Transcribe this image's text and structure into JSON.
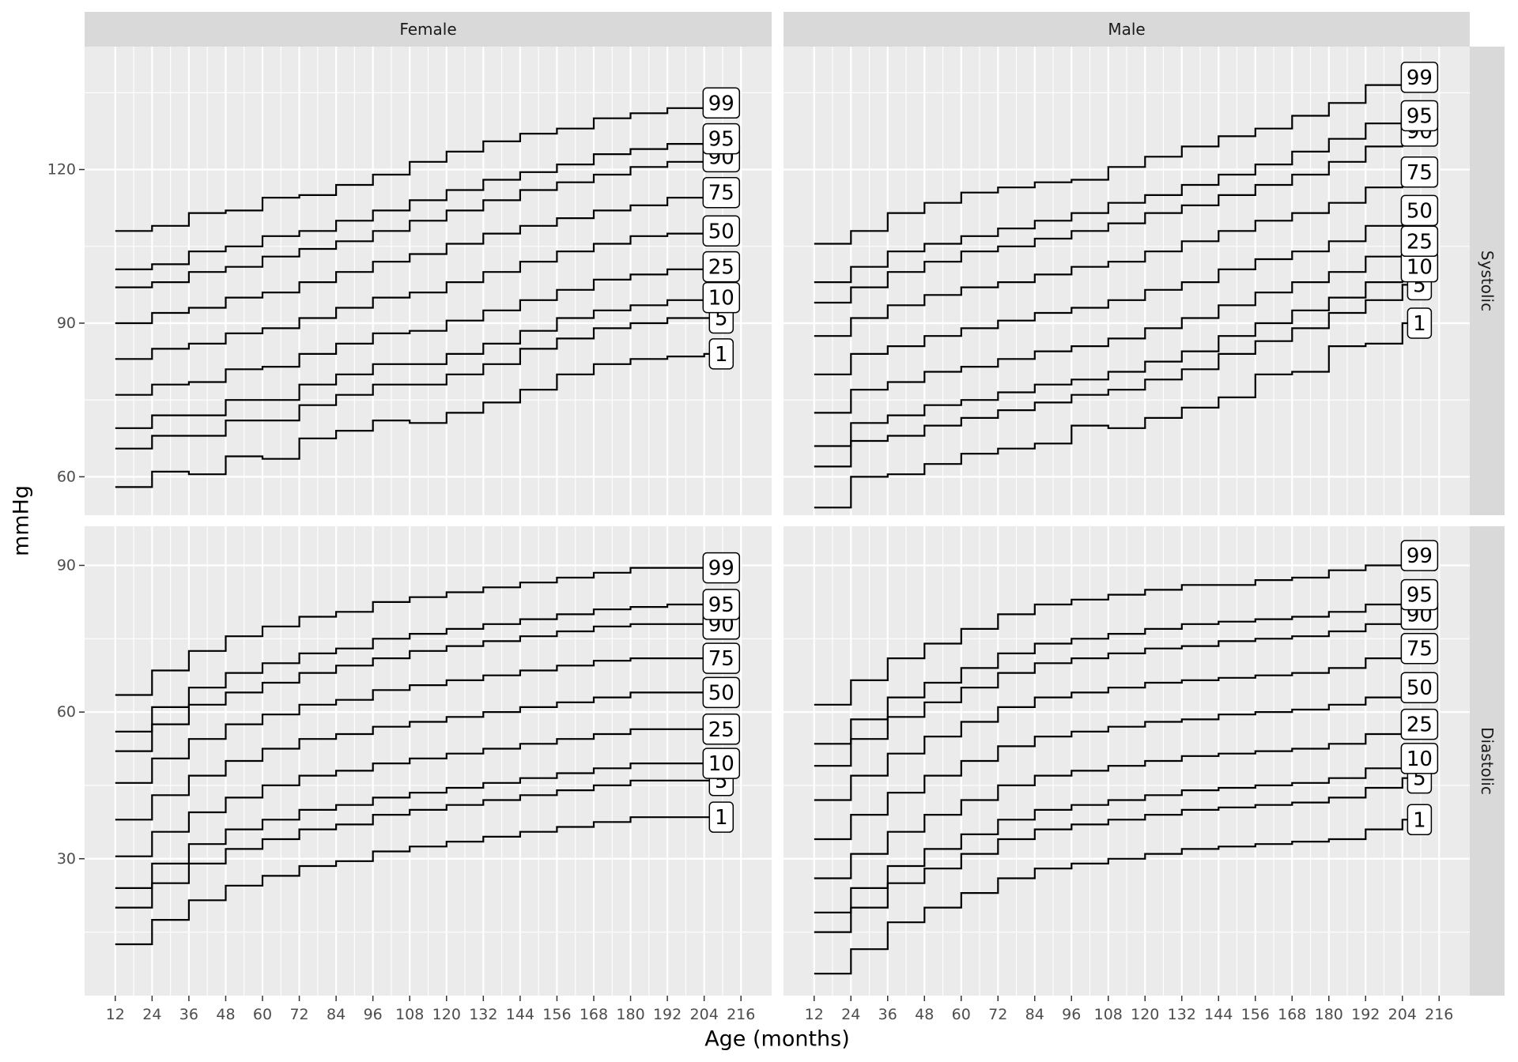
{
  "chart_data": {
    "type": "line",
    "step": true,
    "xlabel": "Age (months)",
    "ylabel": "mmHg",
    "x_ticks": [
      12,
      24,
      36,
      48,
      60,
      72,
      84,
      96,
      108,
      120,
      132,
      144,
      156,
      168,
      180,
      192,
      204,
      216
    ],
    "x": [
      12,
      24,
      36,
      48,
      60,
      72,
      84,
      96,
      108,
      120,
      132,
      144,
      156,
      168,
      180,
      192,
      204,
      207
    ],
    "xlim": [
      2,
      226
    ],
    "columns": [
      "Female",
      "Male"
    ],
    "rows": [
      {
        "label": "Systolic",
        "ylim": [
          52.5,
          144
        ],
        "y_ticks": [
          60,
          90,
          120
        ]
      },
      {
        "label": "Diastolic",
        "ylim": [
          2,
          98
        ],
        "y_ticks": [
          30,
          60,
          90
        ]
      }
    ],
    "label_percentiles": [
      "99",
      "95",
      "90",
      "75",
      "50",
      "25",
      "10",
      "5",
      "1"
    ],
    "panels": [
      {
        "column": "Female",
        "row": "Systolic",
        "series": [
          {
            "name": "99",
            "values": [
              108,
              109,
              111.5,
              112,
              114.5,
              115,
              117,
              119,
              121.5,
              123.5,
              125.5,
              127,
              128,
              130,
              131,
              132,
              133,
              133
            ]
          },
          {
            "name": "95",
            "values": [
              100.5,
              101.5,
              104,
              105,
              107,
              108,
              110,
              112,
              114,
              116,
              118,
              119.5,
              121,
              123,
              124,
              125,
              126,
              126
            ]
          },
          {
            "name": "90",
            "values": [
              97,
              98,
              100,
              101,
              103,
              104.5,
              106,
              108,
              110,
              112,
              114,
              116,
              117.5,
              119,
              120.5,
              121.5,
              122.5,
              122.5
            ]
          },
          {
            "name": "75",
            "values": [
              90,
              92,
              93,
              95,
              96,
              98,
              100,
              102,
              103.5,
              105.5,
              107.5,
              109,
              110.5,
              112,
              113,
              114.5,
              115.5,
              115.5
            ]
          },
          {
            "name": "50",
            "values": [
              83,
              85,
              86,
              88,
              89,
              91,
              93,
              95,
              96,
              98,
              100,
              102,
              104,
              105.5,
              107,
              107.5,
              108,
              108
            ]
          },
          {
            "name": "25",
            "values": [
              76,
              78,
              78.5,
              81,
              81.5,
              84,
              86,
              88,
              88.5,
              90.5,
              92.5,
              94.5,
              96.5,
              98.5,
              99.5,
              100.5,
              101,
              101
            ]
          },
          {
            "name": "10",
            "values": [
              69.5,
              72,
              72,
              75,
              75,
              78,
              80,
              82,
              82,
              84,
              86,
              88.5,
              91,
              92.5,
              93.5,
              94.5,
              95,
              95
            ]
          },
          {
            "name": "5",
            "values": [
              65.5,
              68,
              68,
              71,
              71,
              74,
              76,
              78,
              78,
              80,
              82,
              85,
              87,
              89,
              90,
              91,
              91,
              91
            ]
          },
          {
            "name": "1",
            "values": [
              58,
              61,
              60.5,
              64,
              63.5,
              67.5,
              69,
              71,
              70.5,
              72.5,
              74.5,
              77,
              80,
              82,
              83,
              83.5,
              84,
              84
            ]
          }
        ]
      },
      {
        "column": "Male",
        "row": "Systolic",
        "series": [
          {
            "name": "99",
            "values": [
              105.5,
              108,
              111.5,
              113.5,
              115.5,
              116.5,
              117.5,
              118,
              120.5,
              122.5,
              124.5,
              126.5,
              128,
              130.5,
              133,
              136.5,
              138,
              138
            ]
          },
          {
            "name": "95",
            "values": [
              98,
              101,
              104,
              105.5,
              107,
              108.5,
              110,
              111.5,
              113.5,
              115,
              117,
              119,
              121,
              123.5,
              126,
              129,
              130.5,
              130.5
            ]
          },
          {
            "name": "90",
            "values": [
              94,
              97,
              100,
              102,
              104,
              105,
              106.5,
              108,
              109.5,
              111.5,
              113,
              115,
              117,
              119,
              121.5,
              124.5,
              127.5,
              127.5
            ]
          },
          {
            "name": "75",
            "values": [
              87.5,
              91,
              93.5,
              95.5,
              97,
              98,
              99.5,
              101,
              102,
              104,
              106,
              108,
              110,
              111.5,
              113.5,
              116.5,
              119.5,
              119.5
            ]
          },
          {
            "name": "50",
            "values": [
              80,
              84,
              85.5,
              87.5,
              89,
              90.5,
              92,
              93,
              94.5,
              96.5,
              98,
              100.5,
              102.5,
              104,
              106,
              109,
              112,
              112
            ]
          },
          {
            "name": "25",
            "values": [
              72.5,
              77,
              78.5,
              80.5,
              81.5,
              83,
              84.5,
              85.5,
              87,
              89,
              91,
              93.5,
              96,
              98,
              100,
              103,
              106,
              106
            ]
          },
          {
            "name": "10",
            "values": [
              66,
              70.5,
              72,
              74,
              75,
              76.5,
              78,
              79,
              80.5,
              82.5,
              84.5,
              87.5,
              90,
              92.5,
              95,
              98,
              101,
              101
            ]
          },
          {
            "name": "5",
            "values": [
              62,
              67,
              68,
              70,
              71.5,
              73,
              74.5,
              76,
              77,
              79,
              81,
              84,
              86.5,
              89,
              92,
              94.5,
              97.5,
              97.5
            ]
          },
          {
            "name": "1",
            "values": [
              54,
              60,
              60.5,
              62.5,
              64.5,
              65.5,
              66.5,
              70,
              69.5,
              71.5,
              73.5,
              75.5,
              80,
              80.5,
              85.5,
              86,
              90,
              90
            ]
          }
        ]
      },
      {
        "column": "Female",
        "row": "Diastolic",
        "series": [
          {
            "name": "99",
            "values": [
              63.5,
              68.5,
              72.5,
              75.5,
              77.5,
              79.5,
              80.5,
              82.5,
              83.5,
              84.5,
              85.5,
              86.5,
              87.5,
              88.5,
              89.5,
              89.5,
              89.5,
              89.5
            ]
          },
          {
            "name": "95",
            "values": [
              56,
              61,
              65,
              68,
              70,
              72,
              73,
              75,
              76,
              77,
              78,
              79,
              80,
              81,
              81.5,
              82,
              82,
              82
            ]
          },
          {
            "name": "90",
            "values": [
              52,
              57.5,
              61.5,
              64,
              66,
              68,
              69.5,
              71,
              72.5,
              73.5,
              74.5,
              75.5,
              76.5,
              77.5,
              78,
              78,
              78,
              78
            ]
          },
          {
            "name": "75",
            "values": [
              45.5,
              50.5,
              54.5,
              57.5,
              59.5,
              61.5,
              62.5,
              64.5,
              65.5,
              66.5,
              67.5,
              68.5,
              69.5,
              70.5,
              71,
              71,
              71,
              71
            ]
          },
          {
            "name": "50",
            "values": [
              38,
              43,
              47,
              50,
              52.5,
              54.5,
              55.5,
              57,
              58,
              59,
              60,
              61,
              62,
              63,
              64,
              64,
              64,
              64
            ]
          },
          {
            "name": "25",
            "values": [
              30.5,
              35.5,
              39.5,
              42.5,
              45,
              47,
              48,
              49.5,
              50.5,
              51.5,
              52.5,
              53.5,
              54.5,
              55.5,
              56.5,
              56.5,
              56.5,
              56.5
            ]
          },
          {
            "name": "10",
            "values": [
              24,
              29,
              33,
              36,
              38,
              40,
              41,
              42.5,
              43.5,
              44.5,
              45.5,
              46.5,
              47.5,
              48.5,
              49.5,
              49.5,
              49.5,
              49.5
            ]
          },
          {
            "name": "5",
            "values": [
              20,
              25,
              29,
              32,
              34,
              36,
              37,
              39,
              40,
              41,
              42,
              43,
              44,
              45,
              46,
              46,
              46,
              46
            ]
          },
          {
            "name": "1",
            "values": [
              12.5,
              17.5,
              21.5,
              24.5,
              26.5,
              28.5,
              29.5,
              31.5,
              32.5,
              33.5,
              34.5,
              35.5,
              36.5,
              37.5,
              38.5,
              38.5,
              38.5,
              38.5
            ]
          }
        ]
      },
      {
        "column": "Male",
        "row": "Diastolic",
        "series": [
          {
            "name": "99",
            "values": [
              61.5,
              66.5,
              71,
              74,
              77,
              80,
              82,
              83,
              84,
              85,
              86,
              86,
              87,
              87.5,
              89,
              90,
              92,
              92
            ]
          },
          {
            "name": "95",
            "values": [
              53.5,
              58.5,
              63,
              66,
              69,
              72,
              74,
              75,
              76,
              77,
              78,
              78.5,
              79,
              79.5,
              80.5,
              82,
              84,
              84
            ]
          },
          {
            "name": "90",
            "values": [
              49,
              54.5,
              59,
              62,
              65,
              68,
              70,
              71,
              72,
              73,
              73.5,
              74.5,
              75,
              75.5,
              76.5,
              78,
              80,
              80
            ]
          },
          {
            "name": "75",
            "values": [
              42,
              47,
              51.5,
              55,
              58,
              61,
              63,
              64,
              65,
              66,
              66.5,
              67,
              67.5,
              68,
              69,
              71,
              73,
              73
            ]
          },
          {
            "name": "50",
            "values": [
              34,
              39,
              43.5,
              47,
              50,
              53,
              55,
              56,
              57,
              58,
              58.5,
              59.5,
              60,
              60.5,
              61.5,
              63,
              65,
              65
            ]
          },
          {
            "name": "25",
            "values": [
              26,
              31,
              35.5,
              39,
              42,
              45,
              47,
              48,
              49,
              50,
              51,
              51.5,
              52,
              52.5,
              53.5,
              55.5,
              57.5,
              57.5
            ]
          },
          {
            "name": "10",
            "values": [
              19,
              24,
              28.5,
              32,
              35,
              38,
              40,
              41,
              42,
              43,
              44,
              44.5,
              45,
              45.5,
              46.5,
              48.5,
              50.5,
              50.5
            ]
          },
          {
            "name": "5",
            "values": [
              15,
              20,
              25,
              28,
              31,
              34,
              36,
              37,
              38,
              39,
              40,
              40.5,
              41,
              41.5,
              42.5,
              44.5,
              46.5,
              46.5
            ]
          },
          {
            "name": "1",
            "values": [
              6.5,
              11.5,
              17,
              20,
              23,
              26,
              28,
              29,
              30,
              31,
              32,
              32.5,
              33,
              33.5,
              34,
              36,
              38,
              38
            ]
          }
        ]
      }
    ]
  }
}
